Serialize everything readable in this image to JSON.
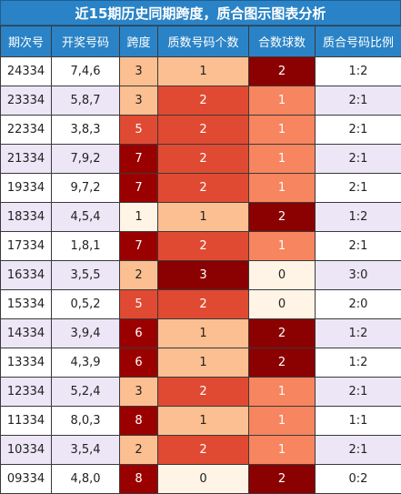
{
  "title": "近15期历史同期跨度，质合图示图表分析",
  "headers": [
    "期次号",
    "开奖号码",
    "跨度",
    "质数号码个数",
    "合数球数",
    "质合号码比例"
  ],
  "colors": {
    "header_bg": "#2a83c6",
    "row_even_bg": "#ece6f6",
    "span_high": "#9b0000",
    "span_mid": "#e04a32",
    "span_low": "#fbbf91",
    "span_min": "#fff4e6",
    "prime_3": "#8b0000",
    "prime_2": "#e04a32",
    "prime_1": "#fbbf91",
    "prime_0": "#fff4e6",
    "comp_2": "#8b0000",
    "comp_1": "#f7855f",
    "comp_0": "#fff4e6"
  },
  "rows": [
    {
      "issue": "24334",
      "numbers": "7,4,6",
      "span": "3",
      "prime": "1",
      "composite": "2",
      "ratio": "1:2"
    },
    {
      "issue": "23334",
      "numbers": "5,8,7",
      "span": "3",
      "prime": "2",
      "composite": "1",
      "ratio": "2:1"
    },
    {
      "issue": "22334",
      "numbers": "3,8,3",
      "span": "5",
      "prime": "2",
      "composite": "1",
      "ratio": "2:1"
    },
    {
      "issue": "21334",
      "numbers": "7,9,2",
      "span": "7",
      "prime": "2",
      "composite": "1",
      "ratio": "2:1"
    },
    {
      "issue": "19334",
      "numbers": "9,7,2",
      "span": "7",
      "prime": "2",
      "composite": "1",
      "ratio": "2:1"
    },
    {
      "issue": "18334",
      "numbers": "4,5,4",
      "span": "1",
      "prime": "1",
      "composite": "2",
      "ratio": "1:2"
    },
    {
      "issue": "17334",
      "numbers": "1,8,1",
      "span": "7",
      "prime": "2",
      "composite": "1",
      "ratio": "2:1"
    },
    {
      "issue": "16334",
      "numbers": "3,5,5",
      "span": "2",
      "prime": "3",
      "composite": "0",
      "ratio": "3:0"
    },
    {
      "issue": "15334",
      "numbers": "0,5,2",
      "span": "5",
      "prime": "2",
      "composite": "0",
      "ratio": "2:0"
    },
    {
      "issue": "14334",
      "numbers": "3,9,4",
      "span": "6",
      "prime": "1",
      "composite": "2",
      "ratio": "1:2"
    },
    {
      "issue": "13334",
      "numbers": "4,3,9",
      "span": "6",
      "prime": "1",
      "composite": "2",
      "ratio": "1:2"
    },
    {
      "issue": "12334",
      "numbers": "5,2,4",
      "span": "3",
      "prime": "2",
      "composite": "1",
      "ratio": "2:1"
    },
    {
      "issue": "11334",
      "numbers": "8,0,3",
      "span": "8",
      "prime": "1",
      "composite": "1",
      "ratio": "1:1"
    },
    {
      "issue": "10334",
      "numbers": "3,5,4",
      "span": "2",
      "prime": "2",
      "composite": "1",
      "ratio": "2:1"
    },
    {
      "issue": "09334",
      "numbers": "4,8,0",
      "span": "8",
      "prime": "0",
      "composite": "2",
      "ratio": "0:2"
    }
  ]
}
